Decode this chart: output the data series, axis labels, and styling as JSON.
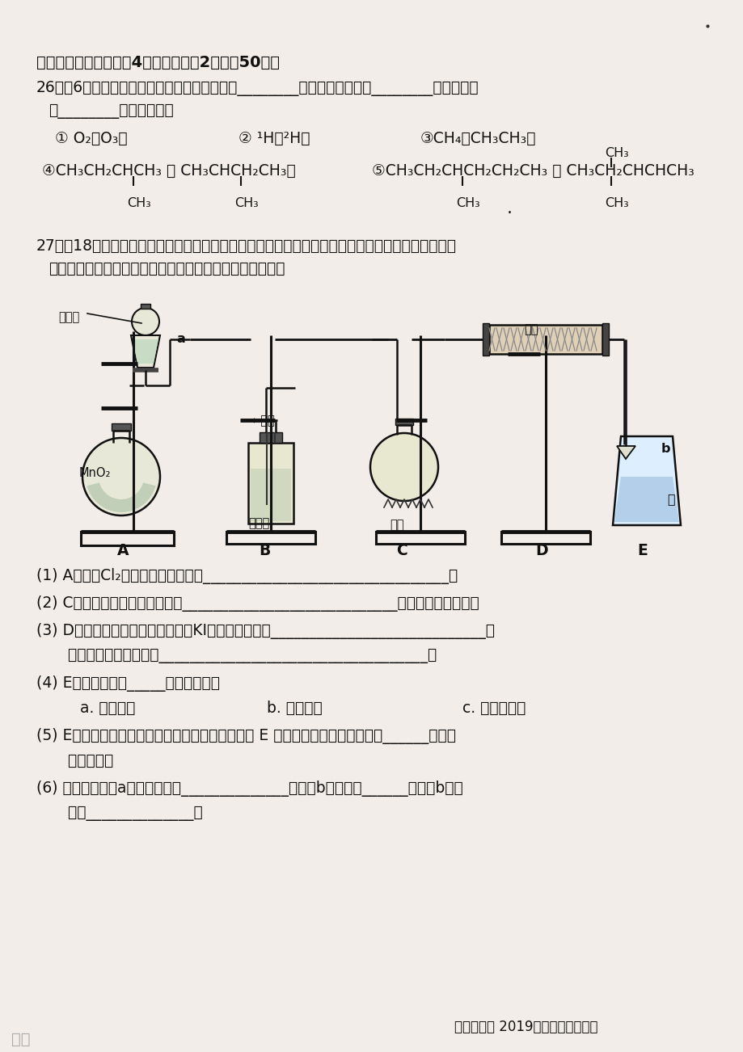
{
  "bg_color": "#f2ede8",
  "text_color": "#111111",
  "section_title": "二、填空题（本题包扢4个小题，每空2分，內50分）",
  "q26_line1": "26．（6分）下列五组物质中，属于同位素的是________；同分异构体的是________；同系物的",
  "q26_line2": "是________；（填编号）",
  "item1": "① O₂和O₃；",
  "item2": "② ¹H和²H；",
  "item3": "③CH₄和CH₃CH₃；",
  "item4": "④CH₃CH₂CHCH₃ 和 CH₃CHCH₂CH₃；",
  "item5": "⑤CH₃CH₂CHCH₂CH₂CH₃ 和 CH₃CH₂CHCHCH₃",
  "q27_line1": "27．！18分）利用甲烷与氯气发生取代反应的副产品生产盐酸的设想在工业上已成为现实．某化学兴",
  "q27_line2": "趣小组在实验室中模拟上述过程，所设计的装置如图所示：",
  "q1": "(1) A中制取Cl₂反应的化学方程式是________________________________；",
  "q2": "(2) C中发生反应的化学方程式是____________________________；（写出一个即可）",
  "q3a": "(3) D装置中的石棉上吸附着潮湿的KI粉末，其作用是____________________________，",
  "q3b": "    其反应的化学方程式为___________________________________；",
  "q4a": "(4) E装置的作用是_____（填序号）：",
  "q4b1": "    a. 收集气体",
  "q4b2": "b. 吸收氯气",
  "q4b3": "c. 吸收氯化氢",
  "q5a": "(5) E装置中除了有盐酸生成外，还含有有机物，从 E 中分离出盐酸的最佳方法是______（填操",
  "q5b": "    作名称）；",
  "q6a": "(6) 图中玻璃弯管a所起的作用是______________；仪器b的名称是______，使用b的作",
  "q6b": "    用是______________。",
  "label_nongsuanao": "浓盐酸",
  "label_liusuanao": "浓硫酸",
  "label_jiaguang": "光照",
  "label_simian": "石棉",
  "label_methane": "←甲烷",
  "label_shui": "水",
  "label_mno2": "MnO₂",
  "footer": "常德市一中 2019年下学期高二期：",
  "watermark": "佳品"
}
